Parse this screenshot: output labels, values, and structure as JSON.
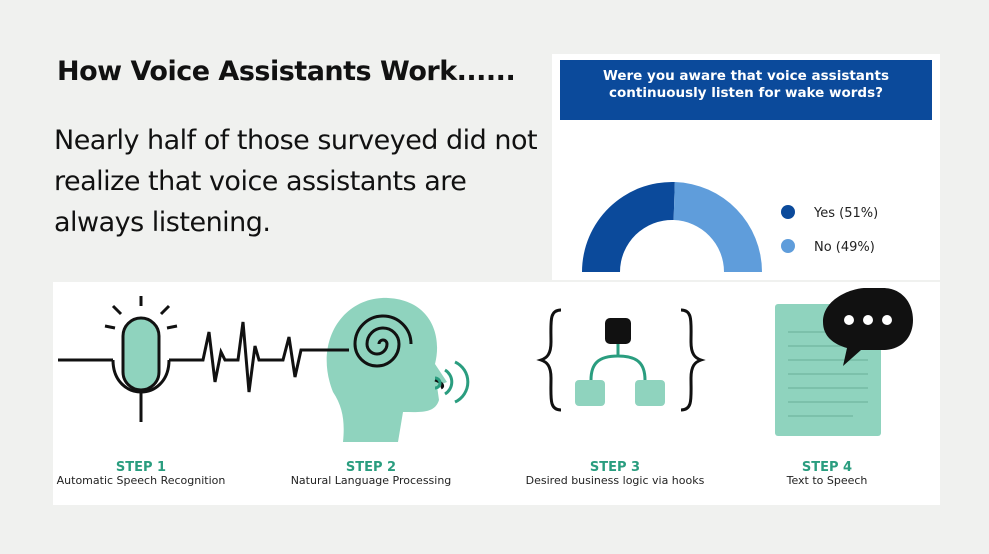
{
  "header": {
    "title": "How Voice Assistants Work......",
    "subtitle": "Nearly half of those surveyed did not realize that voice assistants are always listening."
  },
  "chart_data": {
    "type": "half-donut",
    "title": "Were you aware that voice assistants continuously listen for wake words?",
    "categories": [
      "Yes (51%)",
      "No (49%)"
    ],
    "values": [
      51,
      49
    ],
    "colors": [
      "#0b4a9b",
      "#5f9ddb"
    ]
  },
  "steps": [
    {
      "label": "STEP 1",
      "caption": "Automatic Speech Recognition"
    },
    {
      "label": "STEP 2",
      "caption": "Natural Language Processing"
    },
    {
      "label": "STEP 3",
      "caption": "Desired business logic via hooks"
    },
    {
      "label": "STEP 4",
      "caption": "Text to Speech"
    }
  ]
}
